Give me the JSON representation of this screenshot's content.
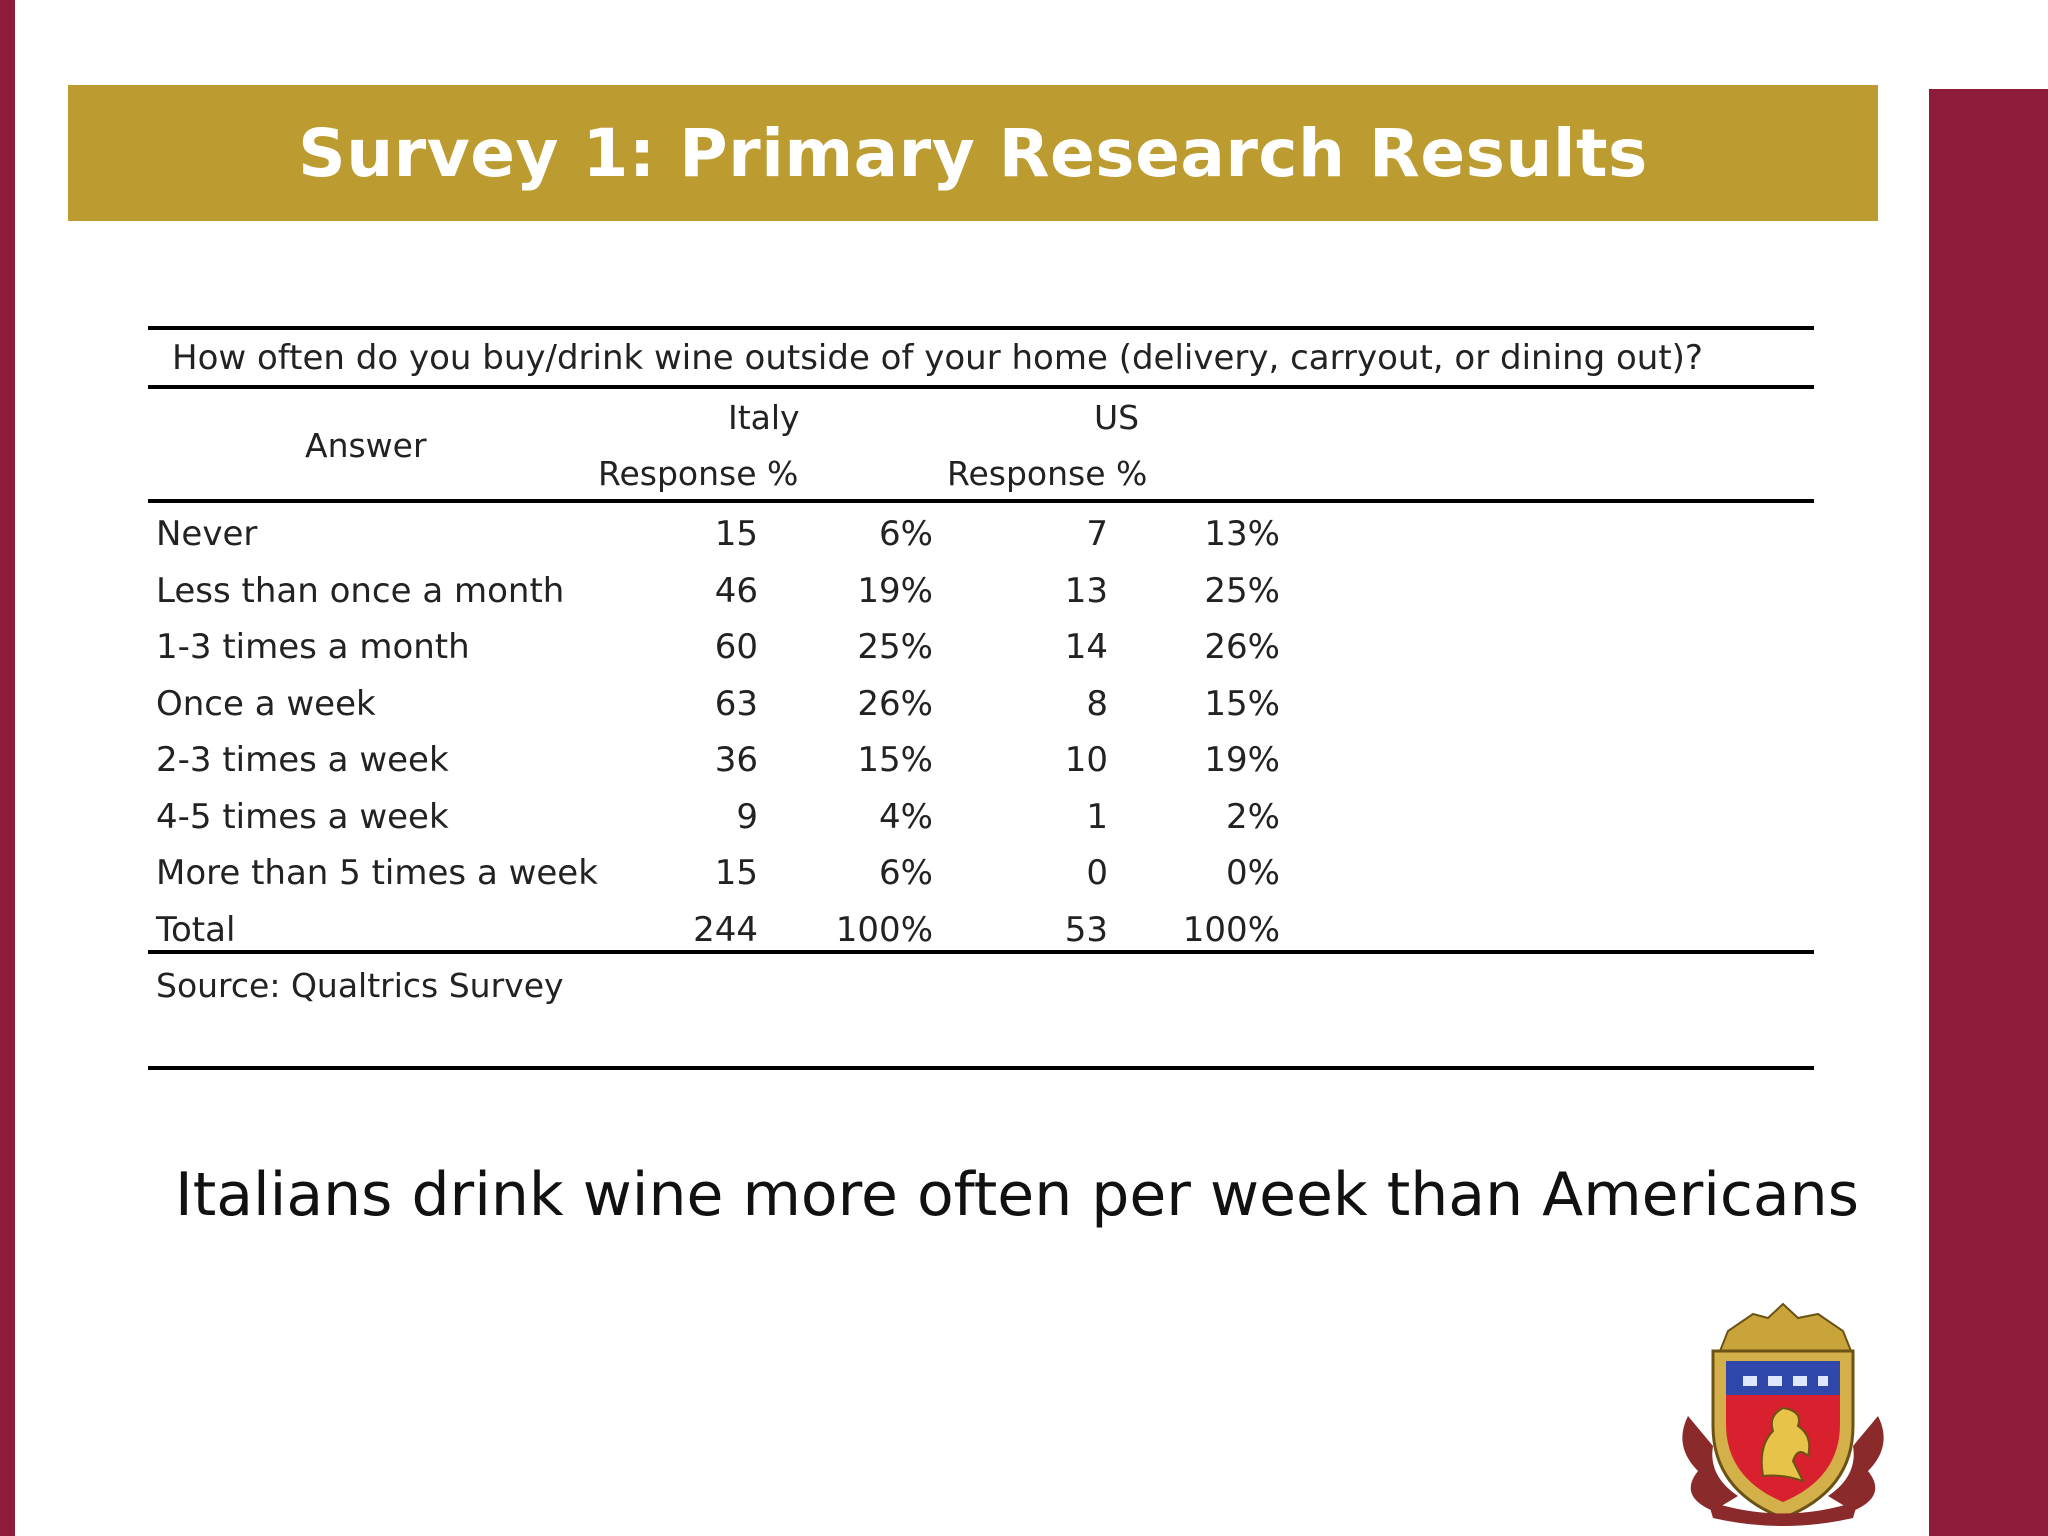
{
  "slide": {
    "title": "Survey 1: Primary Research Results",
    "conclusion": "Italians drink wine more often per week than Americans",
    "colors": {
      "title_band": "#bc9c30",
      "side_bars": "#8e1b3a",
      "title_text": "#ffffff"
    }
  },
  "table": {
    "question": "How often do you buy/drink wine outside of your home (delivery, carryout, or dining out)?",
    "header": {
      "answer": "Answer",
      "italy": "Italy",
      "us": "US",
      "italy_sub": "Response  %",
      "us_sub": "Response %"
    },
    "rows": [
      {
        "answer": "Never",
        "italy_resp": "15",
        "italy_pct": "6%",
        "us_resp": "7",
        "us_pct": "13%"
      },
      {
        "answer": "Less than once a month",
        "italy_resp": "46",
        "italy_pct": "19%",
        "us_resp": "13",
        "us_pct": "25%"
      },
      {
        "answer": "1-3 times a month",
        "italy_resp": "60",
        "italy_pct": "25%",
        "us_resp": "14",
        "us_pct": "26%"
      },
      {
        "answer": "Once a week",
        "italy_resp": "63",
        "italy_pct": "26%",
        "us_resp": "8",
        "us_pct": "15%"
      },
      {
        "answer": "2-3 times a week",
        "italy_resp": "36",
        "italy_pct": "15%",
        "us_resp": "10",
        "us_pct": "19%"
      },
      {
        "answer": "4-5 times a week",
        "italy_resp": "9",
        "italy_pct": "4%",
        "us_resp": "1",
        "us_pct": "2%"
      },
      {
        "answer": "More than 5 times a week",
        "italy_resp": "15",
        "italy_pct": "6%",
        "us_resp": "0",
        "us_pct": "0%"
      },
      {
        "answer": "Total",
        "italy_resp": "244",
        "italy_pct": "100%",
        "us_resp": "53",
        "us_pct": "100%"
      }
    ],
    "source": "Source: Qualtrics Survey"
  },
  "crest": {
    "icon": "heraldic-crest-icon"
  }
}
